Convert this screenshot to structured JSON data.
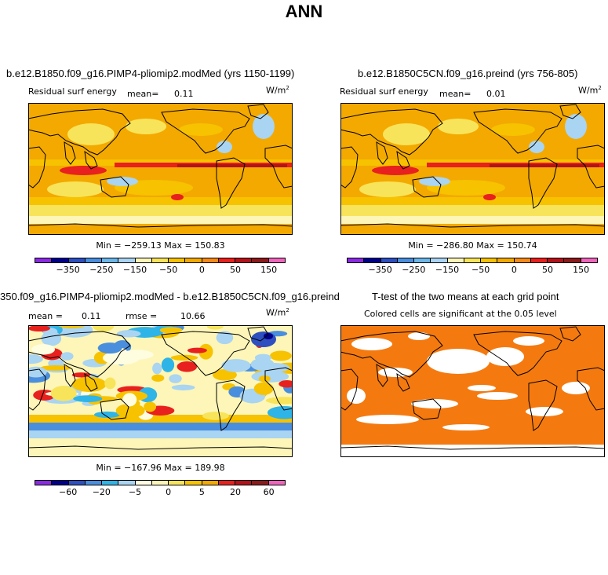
{
  "page": {
    "title": "ANN"
  },
  "colors": {
    "bg_orange": "#f3a900",
    "light_orange": "#f7c200",
    "yellow": "#f8e45a",
    "pale_yellow": "#fdf6b8",
    "cream": "#fffde0",
    "red": "#e8201e",
    "dark_red": "#b3121a",
    "light_blue": "#a9d4f2",
    "mid_blue": "#4a8ede",
    "sig_orange": "#f47a10",
    "land_line": "#000000"
  },
  "chart_data": [
    {
      "type": "heatmap",
      "id": "panel-a",
      "title": "b.e12.B1850.f09_g16.PIMP4-pliomip2.modMed (yrs 1150-1199)",
      "field_label": "Residual surf energy",
      "mean_label": "mean=",
      "mean_value": "0.11",
      "units": "W/m",
      "units_exp": "2",
      "min_max": "Min = −259.13 Max = 150.83",
      "colorbar_colors": [
        "#8a2be2",
        "#00008b",
        "#2d4fbf",
        "#4a8ede",
        "#6cb6e8",
        "#a9d4f2",
        "#fdf6b8",
        "#f8e45a",
        "#f7c200",
        "#f3a900",
        "#f48a1a",
        "#e8201e",
        "#b3121a",
        "#8b1a1a",
        "#ee66bb"
      ],
      "colorbar_labels": [
        "−350",
        "−250",
        "−150",
        "−50",
        "0",
        "50",
        "150"
      ]
    },
    {
      "type": "heatmap",
      "id": "panel-b",
      "title": "b.e12.B1850C5CN.f09_g16.preind (yrs 756-805)",
      "field_label": "Residual surf energy",
      "mean_label": "mean=",
      "mean_value": "0.01",
      "units": "W/m",
      "units_exp": "2",
      "min_max": "Min = −286.80 Max = 150.74",
      "colorbar_colors": [
        "#8a2be2",
        "#00008b",
        "#2d4fbf",
        "#4a8ede",
        "#6cb6e8",
        "#a9d4f2",
        "#fdf6b8",
        "#f8e45a",
        "#f7c200",
        "#f3a900",
        "#f48a1a",
        "#e8201e",
        "#b3121a",
        "#8b1a1a",
        "#ee66bb"
      ],
      "colorbar_labels": [
        "−350",
        "−250",
        "−150",
        "−50",
        "0",
        "50",
        "150"
      ]
    },
    {
      "type": "heatmap",
      "id": "panel-c",
      "title": "350.f09_g16.PIMP4-pliomip2.modMed - b.e12.B1850C5CN.f09_g16.preind",
      "mean_label": "mean =",
      "mean_value": "0.11",
      "rmse_label": "rmse =",
      "rmse_value": "10.66",
      "units": "W/m",
      "units_exp": "2",
      "min_max": "Min = −167.96 Max = 189.98",
      "colorbar_colors": [
        "#8a2be2",
        "#00008b",
        "#2d4fbf",
        "#4a8ede",
        "#2fb4e8",
        "#a9d4f2",
        "#fffde0",
        "#fdf6b8",
        "#f8e45a",
        "#f7c200",
        "#f3a900",
        "#e8201e",
        "#b3121a",
        "#8b1a1a",
        "#ee66bb"
      ],
      "colorbar_labels": [
        "−60",
        "−20",
        "−5",
        "0",
        "5",
        "20",
        "60"
      ]
    },
    {
      "type": "heatmap",
      "id": "panel-d",
      "title": "T-test of the two means at each grid point",
      "subtitle": "Colored cells are significant at the 0.05 level"
    }
  ]
}
